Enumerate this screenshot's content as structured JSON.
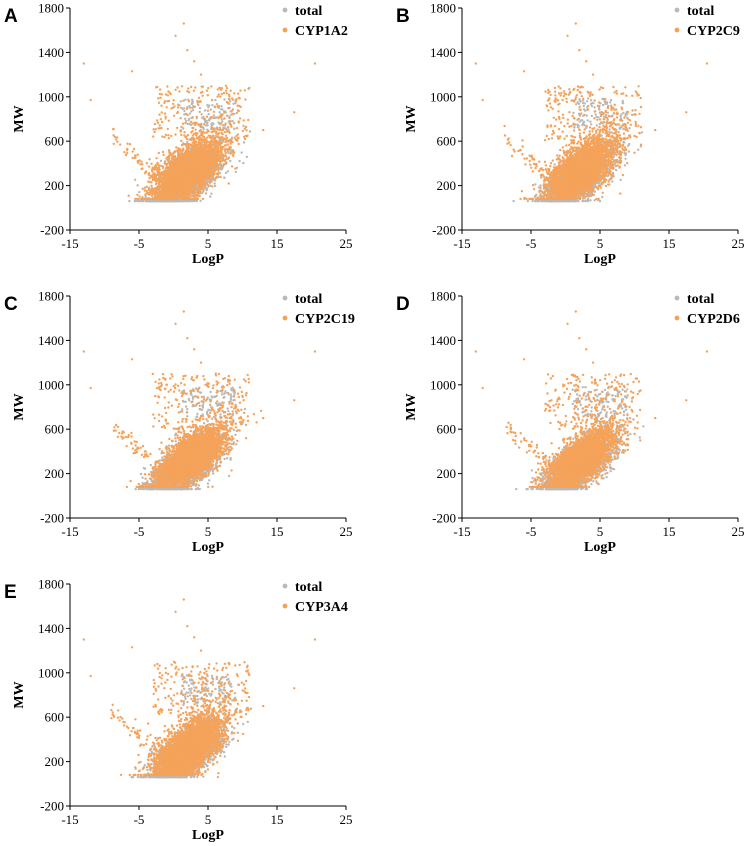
{
  "figure": {
    "colors": {
      "total": "#b9b9b9",
      "target": "#f5a25a",
      "axis": "#000000"
    }
  },
  "chart_data": [
    {
      "panel": "A",
      "type": "scatter",
      "xlabel": "LogP",
      "ylabel": "MW",
      "xlim": [
        -15,
        25
      ],
      "ylim": [
        -200,
        1800
      ],
      "xticks": [
        "-15",
        "-5",
        "5",
        "15",
        "25"
      ],
      "yticks": [
        "-200",
        "200",
        "600",
        "1000",
        "1400",
        "1800"
      ],
      "legend": [
        "total",
        "CYP1A2"
      ],
      "legend_position": "top-right",
      "series": [
        {
          "name": "total",
          "description": "dense cloud",
          "center": [
            2.0,
            270
          ],
          "spread": [
            2.4,
            120
          ],
          "max_mw": 960
        },
        {
          "name": "CYP1A2",
          "center": [
            2.0,
            330
          ],
          "spread": [
            2.5,
            125
          ]
        }
      ]
    },
    {
      "panel": "B",
      "type": "scatter",
      "xlabel": "LogP",
      "ylabel": "MW",
      "xlim": [
        -15,
        25
      ],
      "ylim": [
        -200,
        1800
      ],
      "xticks": [
        "-15",
        "-5",
        "5",
        "15",
        "25"
      ],
      "yticks": [
        "-200",
        "200",
        "600",
        "1000",
        "1400",
        "1800"
      ],
      "legend": [
        "total",
        "CYP2C9"
      ],
      "legend_position": "top-right",
      "series": [
        {
          "name": "total",
          "center": [
            2.0,
            270
          ],
          "spread": [
            2.4,
            120
          ]
        },
        {
          "name": "CYP2C9",
          "center": [
            2.3,
            340
          ],
          "spread": [
            2.5,
            125
          ]
        }
      ]
    },
    {
      "panel": "C",
      "type": "scatter",
      "xlabel": "LogP",
      "ylabel": "MW",
      "xlim": [
        -15,
        25
      ],
      "ylim": [
        -200,
        1800
      ],
      "xticks": [
        "-15",
        "-5",
        "5",
        "15",
        "25"
      ],
      "yticks": [
        "-200",
        "200",
        "600",
        "1000",
        "1400",
        "1800"
      ],
      "legend": [
        "total",
        "CYP2C19"
      ],
      "legend_position": "top-right",
      "series": [
        {
          "name": "total",
          "center": [
            2.0,
            270
          ],
          "spread": [
            2.4,
            120
          ]
        },
        {
          "name": "CYP2C19",
          "center": [
            2.4,
            330
          ],
          "spread": [
            2.5,
            120
          ]
        }
      ]
    },
    {
      "panel": "D",
      "type": "scatter",
      "xlabel": "LogP",
      "ylabel": "MW",
      "xlim": [
        -15,
        25
      ],
      "ylim": [
        -200,
        1800
      ],
      "xticks": [
        "-15",
        "-5",
        "5",
        "15",
        "25"
      ],
      "yticks": [
        "-200",
        "200",
        "600",
        "1000",
        "1400",
        "1800"
      ],
      "legend": [
        "total",
        "CYP2D6"
      ],
      "legend_position": "top-right",
      "series": [
        {
          "name": "total",
          "center": [
            2.0,
            270
          ],
          "spread": [
            2.4,
            120
          ]
        },
        {
          "name": "CYP2D6",
          "center": [
            2.5,
            330
          ],
          "spread": [
            2.3,
            115
          ]
        }
      ]
    },
    {
      "panel": "E",
      "type": "scatter",
      "xlabel": "LogP",
      "ylabel": "MW",
      "xlim": [
        -15,
        25
      ],
      "ylim": [
        -200,
        1800
      ],
      "xticks": [
        "-15",
        "-5",
        "5",
        "15",
        "25"
      ],
      "yticks": [
        "-200",
        "200",
        "600",
        "1000",
        "1400",
        "1800"
      ],
      "legend": [
        "total",
        "CYP3A4"
      ],
      "legend_position": "top-center",
      "series": [
        {
          "name": "total",
          "center": [
            2.0,
            270
          ],
          "spread": [
            2.4,
            120
          ]
        },
        {
          "name": "CYP3A4",
          "center": [
            2.2,
            320
          ],
          "spread": [
            2.6,
            135
          ]
        }
      ]
    }
  ]
}
